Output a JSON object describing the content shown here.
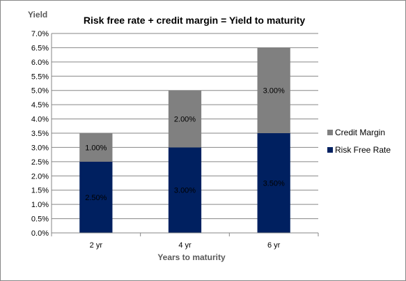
{
  "chart_data": {
    "type": "bar",
    "stacked": true,
    "title": "Risk free rate + credit margin = Yield to maturity",
    "xlabel": "Years to maturity",
    "ylabel": "Yield",
    "categories": [
      "2 yr",
      "4 yr",
      "6 yr"
    ],
    "series": [
      {
        "name": "Risk Free Rate",
        "color": "#002060",
        "values": [
          2.5,
          3.0,
          3.5
        ],
        "data_labels": [
          "2.50%",
          "3.00%",
          "3.50%"
        ]
      },
      {
        "name": "Credit Margin",
        "color": "#808080",
        "values": [
          1.0,
          2.0,
          3.0
        ],
        "data_labels": [
          "1.00%",
          "2.00%",
          "3.00%"
        ]
      }
    ],
    "ylim": [
      0,
      7
    ],
    "yticks": [
      "0.0%",
      "0.5%",
      "1.0%",
      "1.5%",
      "2.0%",
      "2.5%",
      "3.0%",
      "3.5%",
      "4.0%",
      "4.5%",
      "5.0%",
      "5.5%",
      "6.0%",
      "6.5%",
      "7.0%"
    ],
    "grid": true,
    "legend_position": "right"
  }
}
